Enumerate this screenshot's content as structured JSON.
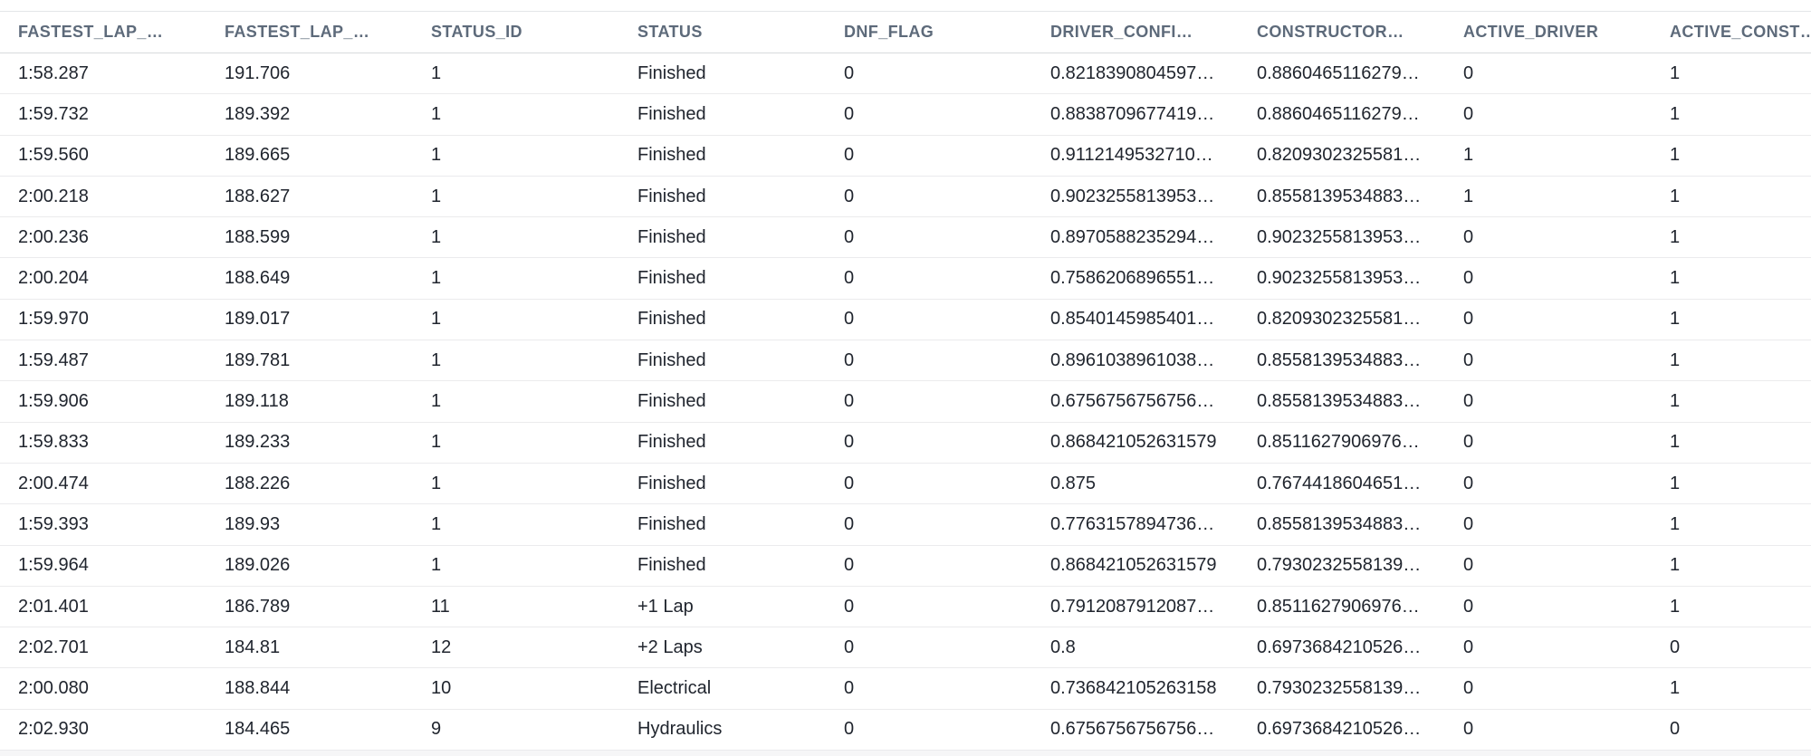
{
  "table": {
    "columns": [
      {
        "label": "FASTEST_LAP_…"
      },
      {
        "label": "FASTEST_LAP_…"
      },
      {
        "label": "STATUS_ID"
      },
      {
        "label": "STATUS"
      },
      {
        "label": "DNF_FLAG"
      },
      {
        "label": "DRIVER_CONFI…"
      },
      {
        "label": "CONSTRUCTOR…"
      },
      {
        "label": "ACTIVE_DRIVER"
      },
      {
        "label": "ACTIVE_CONST…"
      }
    ],
    "rows": [
      [
        "1:58.287",
        "191.706",
        "1",
        "Finished",
        "0",
        "0.8218390804597…",
        "0.8860465116279…",
        "0",
        "1"
      ],
      [
        "1:59.732",
        "189.392",
        "1",
        "Finished",
        "0",
        "0.8838709677419…",
        "0.8860465116279…",
        "0",
        "1"
      ],
      [
        "1:59.560",
        "189.665",
        "1",
        "Finished",
        "0",
        "0.9112149532710…",
        "0.8209302325581…",
        "1",
        "1"
      ],
      [
        "2:00.218",
        "188.627",
        "1",
        "Finished",
        "0",
        "0.9023255813953…",
        "0.8558139534883…",
        "1",
        "1"
      ],
      [
        "2:00.236",
        "188.599",
        "1",
        "Finished",
        "0",
        "0.8970588235294…",
        "0.9023255813953…",
        "0",
        "1"
      ],
      [
        "2:00.204",
        "188.649",
        "1",
        "Finished",
        "0",
        "0.7586206896551…",
        "0.9023255813953…",
        "0",
        "1"
      ],
      [
        "1:59.970",
        "189.017",
        "1",
        "Finished",
        "0",
        "0.8540145985401…",
        "0.8209302325581…",
        "0",
        "1"
      ],
      [
        "1:59.487",
        "189.781",
        "1",
        "Finished",
        "0",
        "0.8961038961038…",
        "0.8558139534883…",
        "0",
        "1"
      ],
      [
        "1:59.906",
        "189.118",
        "1",
        "Finished",
        "0",
        "0.6756756756756…",
        "0.8558139534883…",
        "0",
        "1"
      ],
      [
        "1:59.833",
        "189.233",
        "1",
        "Finished",
        "0",
        "0.868421052631579",
        "0.8511627906976…",
        "0",
        "1"
      ],
      [
        "2:00.474",
        "188.226",
        "1",
        "Finished",
        "0",
        "0.875",
        "0.7674418604651…",
        "0",
        "1"
      ],
      [
        "1:59.393",
        "189.93",
        "1",
        "Finished",
        "0",
        "0.7763157894736…",
        "0.8558139534883…",
        "0",
        "1"
      ],
      [
        "1:59.964",
        "189.026",
        "1",
        "Finished",
        "0",
        "0.868421052631579",
        "0.7930232558139…",
        "0",
        "1"
      ],
      [
        "2:01.401",
        "186.789",
        "11",
        "+1 Lap",
        "0",
        "0.7912087912087…",
        "0.8511627906976…",
        "0",
        "1"
      ],
      [
        "2:02.701",
        "184.81",
        "12",
        "+2 Laps",
        "0",
        "0.8",
        "0.6973684210526…",
        "0",
        "0"
      ],
      [
        "2:00.080",
        "188.844",
        "10",
        "Electrical",
        "0",
        "0.736842105263158",
        "0.7930232558139…",
        "0",
        "1"
      ],
      [
        "2:02.930",
        "184.465",
        "9",
        "Hydraulics",
        "0",
        "0.6756756756756…",
        "0.6973684210526…",
        "0",
        "0"
      ]
    ]
  },
  "colors": {
    "header_text": "#5d6a7a",
    "body_text": "#20252e",
    "row_border": "#ebebed",
    "background": "#ffffff"
  }
}
